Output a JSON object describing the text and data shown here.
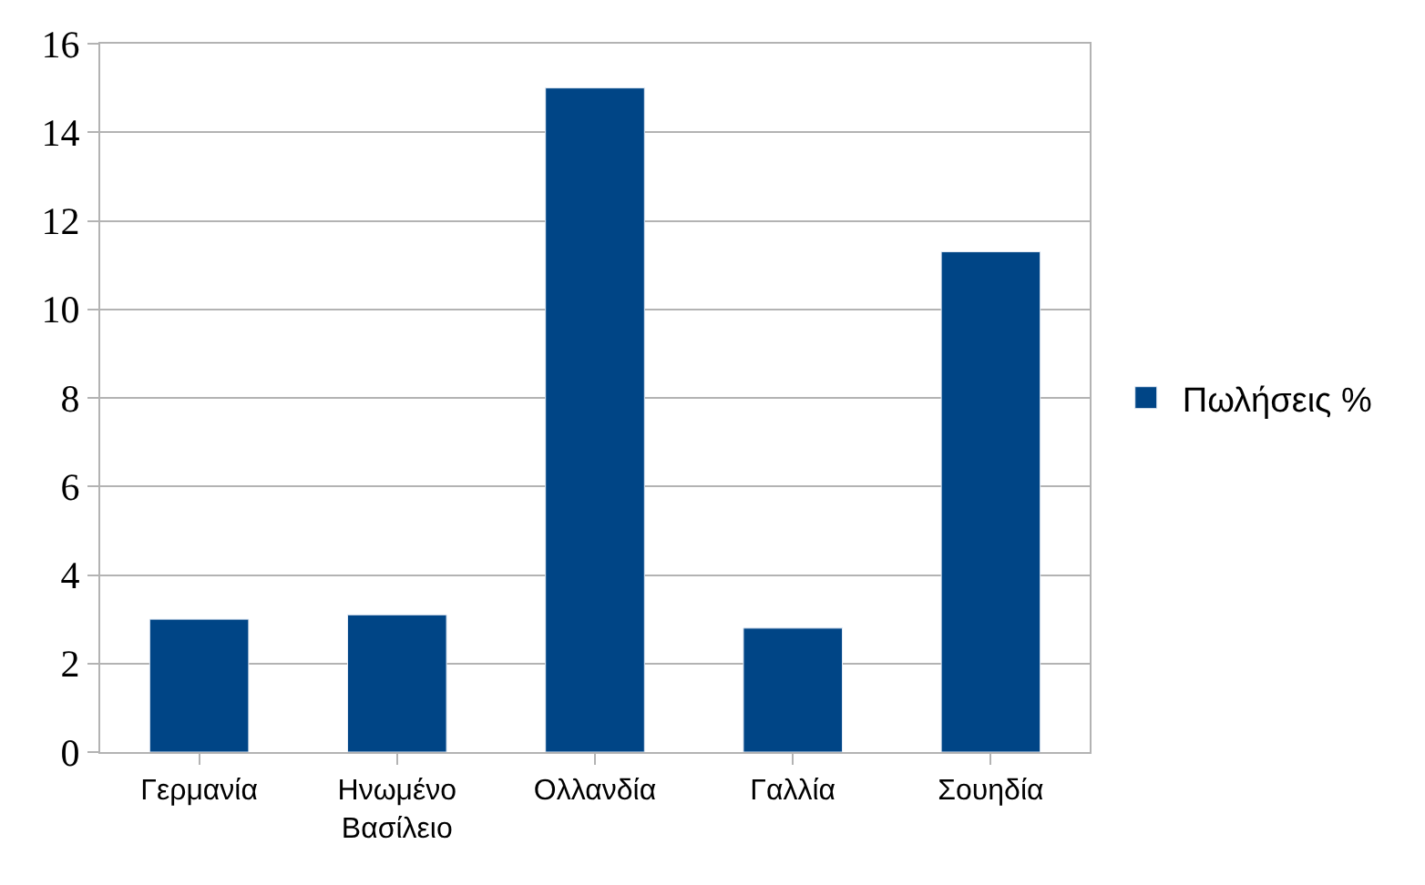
{
  "chart_data": {
    "type": "bar",
    "categories": [
      "Γερμανία",
      "Ηνωμένο Βασίλειο",
      "Ολλανδία",
      "Γαλλία",
      "Σουηδία"
    ],
    "series": [
      {
        "name": "Πωλήσεις %",
        "color": "#004586",
        "values": [
          3.0,
          3.1,
          15.0,
          2.8,
          11.3
        ]
      }
    ],
    "ylim": [
      0,
      16
    ],
    "yticks": [
      0,
      2,
      4,
      6,
      8,
      10,
      12,
      14,
      16
    ],
    "grid": "y",
    "legend": "right"
  }
}
